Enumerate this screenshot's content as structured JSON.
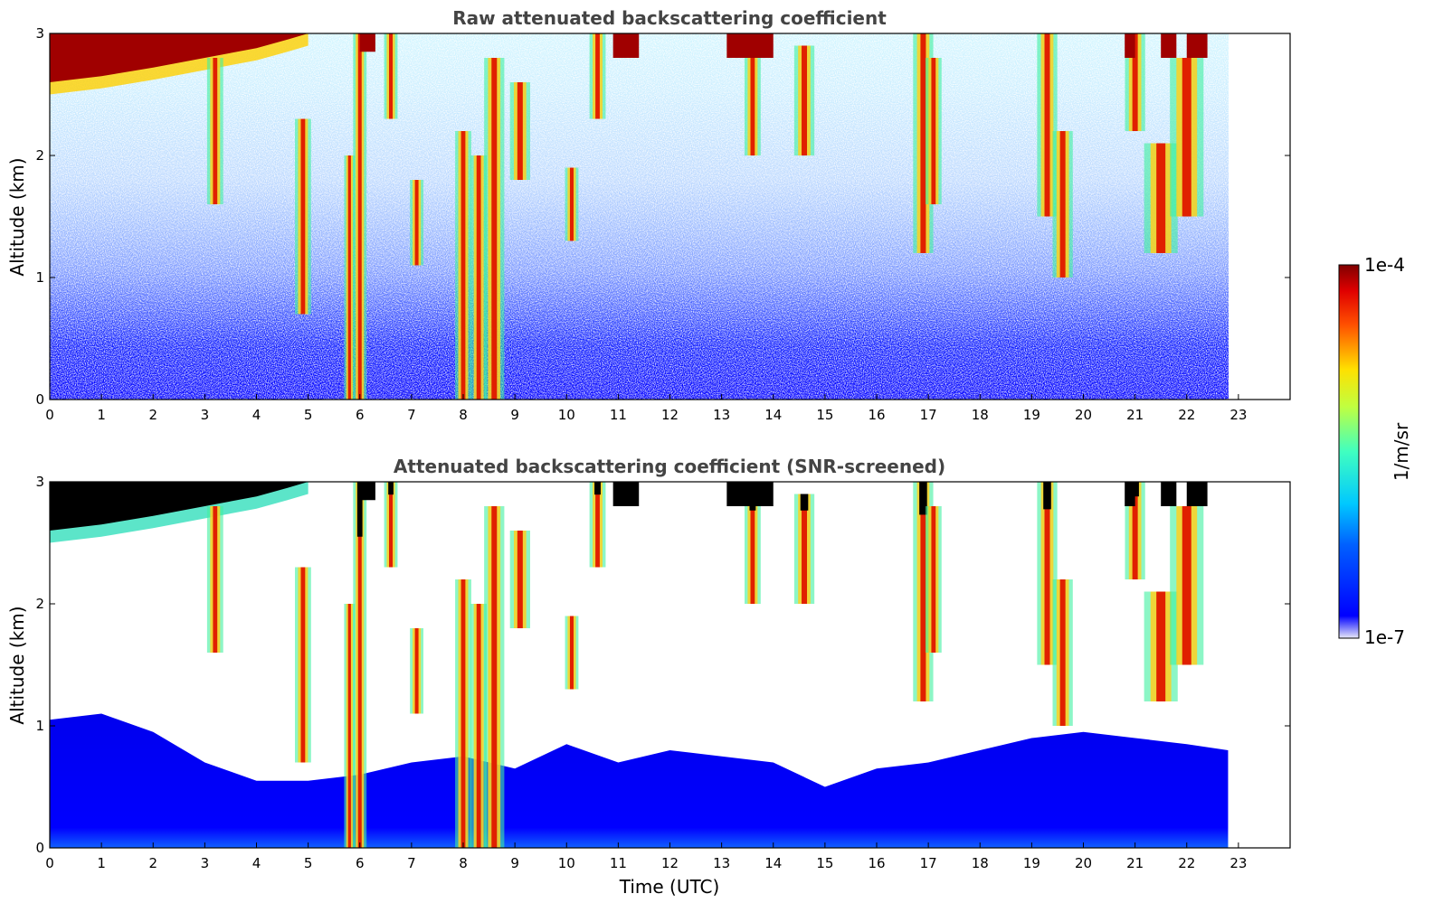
{
  "chart_data": [
    {
      "type": "heatmap",
      "title": "Raw attenuated backscattering coefficient",
      "xlabel": "",
      "ylabel": "Altitude (km)",
      "xlim": [
        0,
        24
      ],
      "ylim": [
        0,
        3
      ],
      "x_ticks": [
        "0",
        "1",
        "2",
        "3",
        "4",
        "5",
        "6",
        "7",
        "8",
        "9",
        "10",
        "11",
        "12",
        "13",
        "14",
        "15",
        "16",
        "17",
        "18",
        "19",
        "20",
        "21",
        "22",
        "23"
      ],
      "y_ticks": [
        "0",
        "1",
        "2",
        "3"
      ],
      "data_end_time": 22.8,
      "screened": false
    },
    {
      "type": "heatmap",
      "title": "Attenuated backscattering coefficient (SNR-screened)",
      "xlabel": "Time (UTC)",
      "ylabel": "Altitude (km)",
      "xlim": [
        0,
        24
      ],
      "ylim": [
        0,
        3
      ],
      "x_ticks": [
        "0",
        "1",
        "2",
        "3",
        "4",
        "5",
        "6",
        "7",
        "8",
        "9",
        "10",
        "11",
        "12",
        "13",
        "14",
        "15",
        "16",
        "17",
        "18",
        "19",
        "20",
        "21",
        "22",
        "23"
      ],
      "y_ticks": [
        "0",
        "1",
        "2",
        "3"
      ],
      "data_end_time": 22.8,
      "screened": true
    }
  ],
  "colorbar": {
    "label": "1/m/sr",
    "max_label": "1e-4",
    "min_label": "1e-7",
    "colormap": "jet"
  },
  "features": {
    "cloud_top_layer": [
      [
        0,
        2.6
      ],
      [
        1,
        2.65
      ],
      [
        2,
        2.72
      ],
      [
        3,
        2.8
      ],
      [
        4,
        2.88
      ],
      [
        4.6,
        2.95
      ],
      [
        5,
        3.0
      ]
    ],
    "plumes": [
      {
        "t": 3.2,
        "top": 2.8,
        "bottom": 1.6,
        "w": 0.12
      },
      {
        "t": 4.9,
        "top": 2.3,
        "bottom": 0.7,
        "w": 0.12
      },
      {
        "t": 5.8,
        "top": 2.0,
        "bottom": 0.0,
        "w": 0.08
      },
      {
        "t": 6.0,
        "top": 3.0,
        "bottom": 0.0,
        "w": 0.1
      },
      {
        "t": 6.6,
        "top": 3.0,
        "bottom": 2.3,
        "w": 0.1
      },
      {
        "t": 7.1,
        "top": 1.8,
        "bottom": 1.1,
        "w": 0.1
      },
      {
        "t": 8.0,
        "top": 2.2,
        "bottom": 0.0,
        "w": 0.12
      },
      {
        "t": 8.3,
        "top": 2.0,
        "bottom": 0.0,
        "w": 0.12
      },
      {
        "t": 8.6,
        "top": 2.8,
        "bottom": 0.0,
        "w": 0.15
      },
      {
        "t": 9.1,
        "top": 2.6,
        "bottom": 1.8,
        "w": 0.15
      },
      {
        "t": 10.1,
        "top": 1.9,
        "bottom": 1.3,
        "w": 0.1
      },
      {
        "t": 10.6,
        "top": 3.0,
        "bottom": 2.3,
        "w": 0.12
      },
      {
        "t": 13.6,
        "top": 2.9,
        "bottom": 2.0,
        "w": 0.12
      },
      {
        "t": 14.6,
        "top": 2.9,
        "bottom": 2.0,
        "w": 0.15
      },
      {
        "t": 16.9,
        "top": 3.0,
        "bottom": 1.2,
        "w": 0.15
      },
      {
        "t": 17.1,
        "top": 2.8,
        "bottom": 1.6,
        "w": 0.12
      },
      {
        "t": 19.3,
        "top": 3.0,
        "bottom": 1.5,
        "w": 0.15
      },
      {
        "t": 19.6,
        "top": 2.2,
        "bottom": 1.0,
        "w": 0.15
      },
      {
        "t": 21.0,
        "top": 3.0,
        "bottom": 2.2,
        "w": 0.15
      },
      {
        "t": 21.5,
        "top": 2.1,
        "bottom": 1.2,
        "w": 0.25
      },
      {
        "t": 22.0,
        "top": 2.8,
        "bottom": 1.5,
        "w": 0.25
      }
    ],
    "high_patches": [
      {
        "t0": 6.0,
        "t1": 6.3,
        "alt": 3.0
      },
      {
        "t0": 10.9,
        "t1": 11.4,
        "alt": 2.95
      },
      {
        "t0": 13.1,
        "t1": 14.0,
        "alt": 2.95
      },
      {
        "t0": 20.8,
        "t1": 21.0,
        "alt": 2.95
      },
      {
        "t0": 21.5,
        "t1": 21.8,
        "alt": 2.95
      },
      {
        "t0": 22.0,
        "t1": 22.4,
        "alt": 2.95
      }
    ],
    "boundary_layer_top": [
      [
        0,
        1.05
      ],
      [
        1,
        1.1
      ],
      [
        2,
        0.95
      ],
      [
        3,
        0.7
      ],
      [
        4,
        0.55
      ],
      [
        5,
        0.55
      ],
      [
        6,
        0.6
      ],
      [
        7,
        0.7
      ],
      [
        8,
        0.75
      ],
      [
        9,
        0.65
      ],
      [
        10,
        0.85
      ],
      [
        11,
        0.7
      ],
      [
        12,
        0.8
      ],
      [
        13,
        0.75
      ],
      [
        14,
        0.7
      ],
      [
        15,
        0.5
      ],
      [
        16,
        0.65
      ],
      [
        17,
        0.7
      ],
      [
        18,
        0.8
      ],
      [
        19,
        0.9
      ],
      [
        20,
        0.95
      ],
      [
        21,
        0.9
      ],
      [
        22,
        0.85
      ],
      [
        22.8,
        0.8
      ]
    ]
  }
}
